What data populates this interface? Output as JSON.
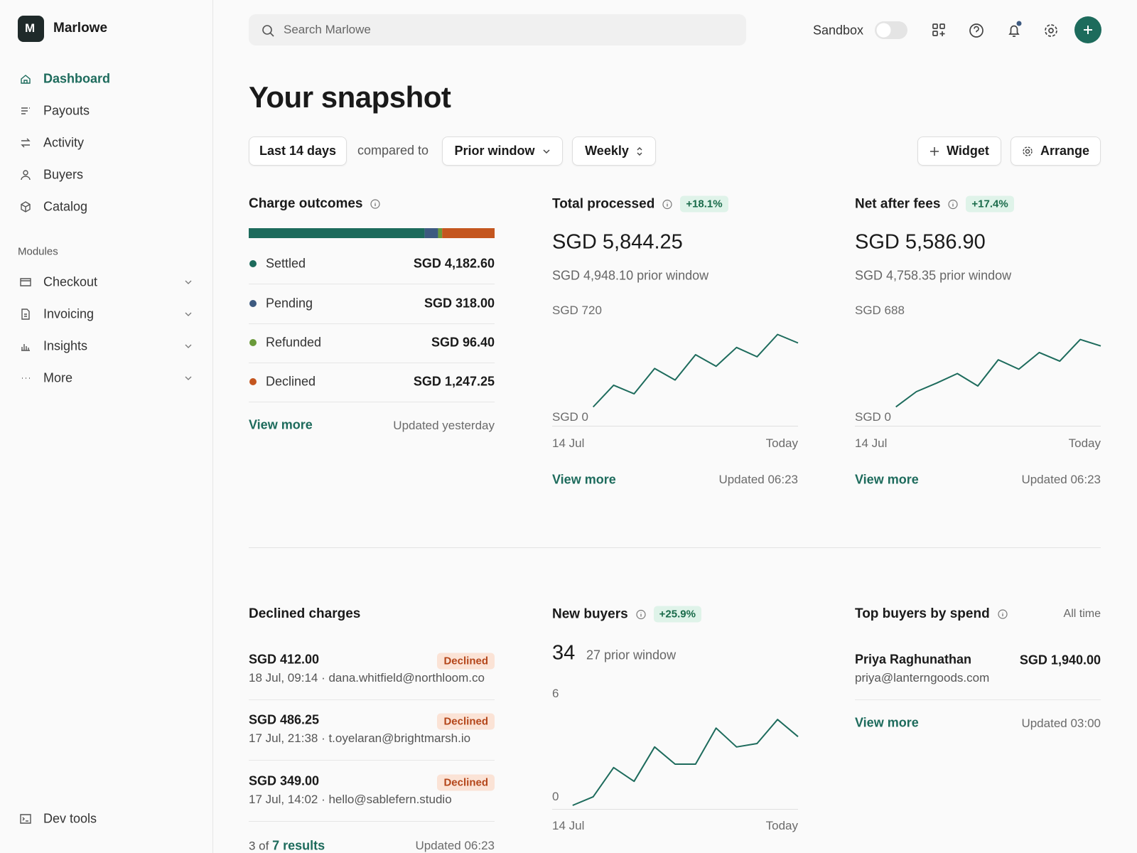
{
  "sidebar": {
    "brand_initial": "M",
    "brand": "Marlowe",
    "nav": [
      "Dashboard",
      "Payouts",
      "Activity",
      "Buyers",
      "Catalog"
    ],
    "modules_heading": "Modules",
    "modules": [
      "Checkout",
      "Invoicing",
      "Insights",
      "More"
    ],
    "footer": "Dev tools"
  },
  "topbar": {
    "search_placeholder": "Search Marlowe",
    "sandbox": "Sandbox"
  },
  "page": {
    "title": "Your snapshot",
    "filters": {
      "range": "Last 14 days",
      "compared": "compared to",
      "comparison": "Prior window",
      "interval": "Weekly"
    },
    "actions": [
      "Widget",
      "Arrange"
    ]
  },
  "widgets": {
    "charge_outcomes": {
      "title": "Charge outcomes",
      "segments": [
        {
          "name": "Settled",
          "value": 4182.6,
          "value_label": "SGD 4,182.60",
          "color": "#1d6b5c"
        },
        {
          "name": "Pending",
          "value": 318,
          "value_label": "SGD 318.00",
          "color": "#3d5a80"
        },
        {
          "name": "Refunded",
          "value": 96.4,
          "value_label": "SGD 96.40",
          "color": "#6a9a3a"
        },
        {
          "name": "Declined",
          "value": 1247.25,
          "value_label": "SGD 1,247.25",
          "color": "#c4561f"
        }
      ],
      "link": "View more",
      "updated": "Updated yesterday"
    },
    "total_processed": {
      "title": "Total processed",
      "change": "+18.1%",
      "value": "SGD 5,844.25",
      "prior": "SGD 4,948.10 prior window",
      "chart": {
        "type": "line",
        "color": "#1d6b5c",
        "ylim": [
          0,
          720
        ],
        "yticks": [
          {
            "value": 720,
            "label": "SGD 720"
          },
          {
            "value": 0,
            "label": "SGD 0"
          }
        ],
        "x_labels": [
          "14 Jul",
          "Today"
        ],
        "values": [
          null,
          null,
          127,
          274,
          216,
          387,
          309,
          480,
          402,
          529,
          466,
          617,
          559
        ]
      },
      "link": "View more",
      "updated": "Updated 06:23"
    },
    "net_after_fees": {
      "title": "Net after fees",
      "change": "+17.4%",
      "value": "SGD 5,586.90",
      "prior": "SGD 4,758.35 prior window",
      "chart": {
        "type": "line",
        "color": "#1d6b5c",
        "ylim": [
          0,
          688
        ],
        "yticks": [
          {
            "value": 688,
            "label": "SGD 688"
          },
          {
            "value": 0,
            "label": "SGD 0"
          }
        ],
        "x_labels": [
          "14 Jul",
          "Today"
        ],
        "values": [
          null,
          null,
          122,
          220,
          276,
          337,
          257,
          426,
          365,
          473,
          417,
          557,
          515
        ]
      },
      "link": "View more",
      "updated": "Updated 06:23"
    },
    "declined_charges": {
      "title": "Declined charges",
      "items": [
        {
          "amount": "SGD 412.00",
          "status": "Declined",
          "meta": "18 Jul, 09:14 · dana.whitfield@northloom.co"
        },
        {
          "amount": "SGD 486.25",
          "status": "Declined",
          "meta": "17 Jul, 21:38 · t.oyelaran@brightmarsh.io"
        },
        {
          "amount": "SGD 349.00",
          "status": "Declined",
          "meta": "17 Jul, 14:02 · hello@sablefern.studio"
        }
      ],
      "count": "3 of",
      "results": "7 results",
      "updated": "Updated 06:23"
    },
    "new_buyers": {
      "title": "New buyers",
      "change": "+25.9%",
      "value": "34",
      "prior": "27 prior window",
      "chart": {
        "type": "line",
        "color": "#1d6b5c",
        "ylim": [
          0,
          6
        ],
        "yticks": [
          6,
          0
        ],
        "x_labels": [
          "14 Jul",
          "Today"
        ],
        "values": [
          null,
          0,
          0.5,
          2.2,
          1.4,
          3.4,
          2.4,
          2.4,
          4.5,
          3.4,
          3.6,
          5,
          4
        ]
      }
    },
    "top_buyers": {
      "title": "Top buyers by spend",
      "period": "All time",
      "buyers": [
        {
          "name": "Priya Raghunathan",
          "email": "priya@lanterngoods.com",
          "amount": "SGD 1,940.00"
        }
      ],
      "link": "View more",
      "updated": "Updated 03:00"
    }
  }
}
